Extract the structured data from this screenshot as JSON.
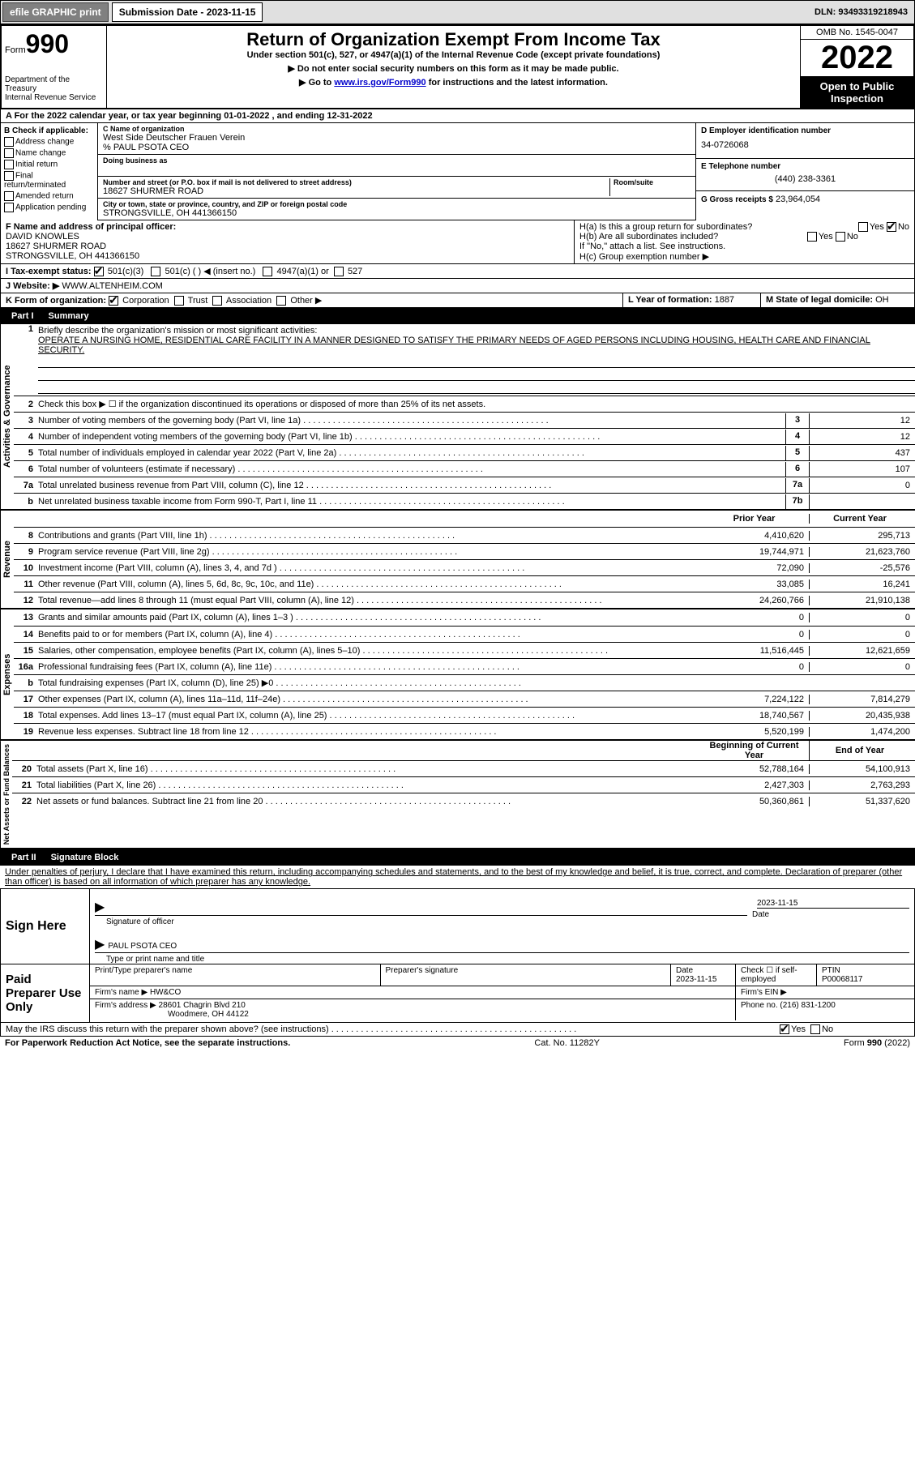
{
  "header": {
    "efile_btn": "efile GRAPHIC print",
    "sub_date_lbl": "Submission Date - 2023-11-15",
    "dln": "DLN: 93493319218943",
    "form_label": "Form",
    "form_num": "990",
    "title": "Return of Organization Exempt From Income Tax",
    "subtitle": "Under section 501(c), 527, or 4947(a)(1) of the Internal Revenue Code (except private foundations)",
    "arrow1": "▶ Do not enter social security numbers on this form as it may be made public.",
    "arrow2_pre": "▶ Go to ",
    "arrow2_link": "www.irs.gov/Form990",
    "arrow2_post": " for instructions and the latest information.",
    "dept": "Department of the Treasury",
    "irs": "Internal Revenue Service",
    "omb": "OMB No. 1545-0047",
    "year": "2022",
    "open": "Open to Public Inspection"
  },
  "row_a": "A For the 2022 calendar year, or tax year beginning 01-01-2022    , and ending 12-31-2022",
  "col_b": {
    "label": "B Check if applicable:",
    "items": [
      "Address change",
      "Name change",
      "Initial return",
      "Final return/terminated",
      "Amended return",
      "Application pending"
    ]
  },
  "col_c": {
    "name_lbl": "C Name of organization",
    "name": "West Side Deutscher Frauen Verein",
    "care_of": "% PAUL PSOTA CEO",
    "dba_lbl": "Doing business as",
    "addr_lbl": "Number and street (or P.O. box if mail is not delivered to street address)",
    "room_lbl": "Room/suite",
    "addr": "18627 SHURMER ROAD",
    "city_lbl": "City or town, state or province, country, and ZIP or foreign postal code",
    "city": "STRONGSVILLE, OH  441366150"
  },
  "col_d": {
    "ein_lbl": "D Employer identification number",
    "ein": "34-0726068",
    "phone_lbl": "E Telephone number",
    "phone": "(440) 238-3361",
    "gross_lbl": "G Gross receipts $",
    "gross": "23,964,054"
  },
  "row_f": {
    "lbl": "F Name and address of principal officer:",
    "name": "DAVID KNOWLES",
    "addr1": "18627 SHURMER ROAD",
    "addr2": "STRONGSVILLE, OH  441366150"
  },
  "row_h": {
    "ha": "H(a)  Is this a group return for subordinates?",
    "hb": "H(b)  Are all subordinates included?",
    "hb2": "If \"No,\" attach a list. See instructions.",
    "hc": "H(c)  Group exemption number ▶"
  },
  "row_i": {
    "lbl": "I    Tax-exempt status:",
    "opts": [
      "501(c)(3)",
      "501(c) (  ) ◀ (insert no.)",
      "4947(a)(1) or",
      "527"
    ]
  },
  "row_j": {
    "lbl": "J    Website: ▶",
    "val": "WWW.ALTENHEIM.COM"
  },
  "row_k": {
    "lbl": "K Form of organization:",
    "opts": [
      "Corporation",
      "Trust",
      "Association",
      "Other ▶"
    ]
  },
  "row_l": {
    "lbl": "L Year of formation:",
    "val": "1887"
  },
  "row_m": {
    "lbl": "M State of legal domicile:",
    "val": "OH"
  },
  "parts": {
    "p1": "Part I",
    "p1_title": "Summary",
    "p2": "Part II",
    "p2_title": "Signature Block"
  },
  "summary": {
    "line1_lbl": "Briefly describe the organization's mission or most significant activities:",
    "line1_txt": "OPERATE A NURSING HOME, RESIDENTIAL CARE FACILITY IN A MANNER DESIGNED TO SATISFY THE PRIMARY NEEDS OF AGED PERSONS INCLUDING HOUSING, HEALTH CARE AND FINANCIAL SECURITY.",
    "line2": "Check this box ▶ ☐ if the organization discontinued its operations or disposed of more than 25% of its net assets.",
    "vert_labels": [
      "Activities & Governance",
      "Revenue",
      "Expenses",
      "Net Assets or Fund Balances"
    ],
    "col_hdr1": "Prior Year",
    "col_hdr2": "Current Year",
    "col_hdr1b": "Beginning of Current Year",
    "col_hdr2b": "End of Year",
    "governance": [
      {
        "n": "3",
        "t": "Number of voting members of the governing body (Part VI, line 1a)",
        "b": "3",
        "v": "12"
      },
      {
        "n": "4",
        "t": "Number of independent voting members of the governing body (Part VI, line 1b)",
        "b": "4",
        "v": "12"
      },
      {
        "n": "5",
        "t": "Total number of individuals employed in calendar year 2022 (Part V, line 2a)",
        "b": "5",
        "v": "437"
      },
      {
        "n": "6",
        "t": "Total number of volunteers (estimate if necessary)",
        "b": "6",
        "v": "107"
      },
      {
        "n": "7a",
        "t": "Total unrelated business revenue from Part VIII, column (C), line 12",
        "b": "7a",
        "v": "0"
      },
      {
        "n": "b",
        "t": "Net unrelated business taxable income from Form 990-T, Part I, line 11",
        "b": "7b",
        "v": ""
      }
    ],
    "revenue": [
      {
        "n": "8",
        "t": "Contributions and grants (Part VIII, line 1h)",
        "v1": "4,410,620",
        "v2": "295,713"
      },
      {
        "n": "9",
        "t": "Program service revenue (Part VIII, line 2g)",
        "v1": "19,744,971",
        "v2": "21,623,760"
      },
      {
        "n": "10",
        "t": "Investment income (Part VIII, column (A), lines 3, 4, and 7d )",
        "v1": "72,090",
        "v2": "-25,576"
      },
      {
        "n": "11",
        "t": "Other revenue (Part VIII, column (A), lines 5, 6d, 8c, 9c, 10c, and 11e)",
        "v1": "33,085",
        "v2": "16,241"
      },
      {
        "n": "12",
        "t": "Total revenue—add lines 8 through 11 (must equal Part VIII, column (A), line 12)",
        "v1": "24,260,766",
        "v2": "21,910,138"
      }
    ],
    "expenses": [
      {
        "n": "13",
        "t": "Grants and similar amounts paid (Part IX, column (A), lines 1–3 )",
        "v1": "0",
        "v2": "0"
      },
      {
        "n": "14",
        "t": "Benefits paid to or for members (Part IX, column (A), line 4)",
        "v1": "0",
        "v2": "0"
      },
      {
        "n": "15",
        "t": "Salaries, other compensation, employee benefits (Part IX, column (A), lines 5–10)",
        "v1": "11,516,445",
        "v2": "12,621,659"
      },
      {
        "n": "16a",
        "t": "Professional fundraising fees (Part IX, column (A), line 11e)",
        "v1": "0",
        "v2": "0"
      },
      {
        "n": "b",
        "t": "Total fundraising expenses (Part IX, column (D), line 25) ▶0",
        "v1": "GRAY",
        "v2": "GRAY"
      },
      {
        "n": "17",
        "t": "Other expenses (Part IX, column (A), lines 11a–11d, 11f–24e)",
        "v1": "7,224,122",
        "v2": "7,814,279"
      },
      {
        "n": "18",
        "t": "Total expenses. Add lines 13–17 (must equal Part IX, column (A), line 25)",
        "v1": "18,740,567",
        "v2": "20,435,938"
      },
      {
        "n": "19",
        "t": "Revenue less expenses. Subtract line 18 from line 12",
        "v1": "5,520,199",
        "v2": "1,474,200"
      }
    ],
    "net_assets": [
      {
        "n": "20",
        "t": "Total assets (Part X, line 16)",
        "v1": "52,788,164",
        "v2": "54,100,913"
      },
      {
        "n": "21",
        "t": "Total liabilities (Part X, line 26)",
        "v1": "2,427,303",
        "v2": "2,763,293"
      },
      {
        "n": "22",
        "t": "Net assets or fund balances. Subtract line 21 from line 20",
        "v1": "50,360,861",
        "v2": "51,337,620"
      }
    ]
  },
  "sig_block": {
    "penalty": "Under penalties of perjury, I declare that I have examined this return, including accompanying schedules and statements, and to the best of my knowledge and belief, it is true, correct, and complete. Declaration of preparer (other than officer) is based on all information of which preparer has any knowledge.",
    "sign_here": "Sign Here",
    "sig_date": "2023-11-15",
    "sig_lbl": "Signature of officer",
    "date_lbl": "Date",
    "name": "PAUL PSOTA  CEO",
    "name_lbl": "Type or print name and title"
  },
  "prep": {
    "title": "Paid Preparer Use Only",
    "r1": {
      "c1": "Print/Type preparer's name",
      "c2": "Preparer's signature",
      "c3_lbl": "Date",
      "c3": "2023-11-15",
      "c4": "Check ☐ if self-employed",
      "c5_lbl": "PTIN",
      "c5": "P00068117"
    },
    "r2": {
      "lbl": "Firm's name    ▶",
      "val": "HW&CO",
      "ein_lbl": "Firm's EIN ▶"
    },
    "r3": {
      "lbl": "Firm's address ▶",
      "val": "28601 Chagrin Blvd 210",
      "val2": "Woodmere, OH  44122",
      "ph_lbl": "Phone no.",
      "ph": "(216) 831-1200"
    }
  },
  "footer": {
    "discuss": "May the IRS discuss this return with the preparer shown above? (see instructions)",
    "paperwork": "For Paperwork Reduction Act Notice, see the separate instructions.",
    "cat": "Cat. No. 11282Y",
    "form": "Form 990 (2022)"
  }
}
